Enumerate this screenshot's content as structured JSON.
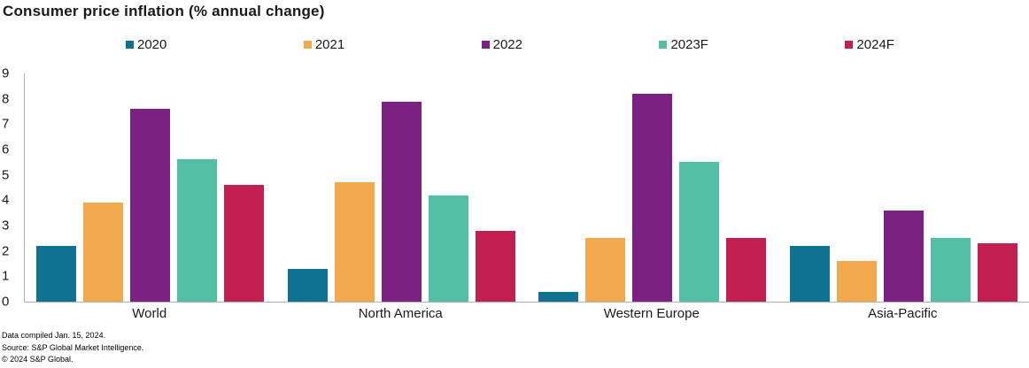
{
  "chart_data": {
    "type": "bar",
    "title": "Consumer price inflation (% annual change)",
    "categories": [
      "World",
      "North America",
      "Western Europe",
      "Asia-Pacific"
    ],
    "series": [
      {
        "name": "2020",
        "color": "#0f7291",
        "values": [
          2.2,
          1.3,
          0.4,
          2.2
        ]
      },
      {
        "name": "2021",
        "color": "#f2a84d",
        "values": [
          3.9,
          4.7,
          2.5,
          1.6
        ]
      },
      {
        "name": "2022",
        "color": "#7b2182",
        "values": [
          7.6,
          7.9,
          8.2,
          3.6
        ]
      },
      {
        "name": "2023F",
        "color": "#52bfa5",
        "values": [
          5.6,
          4.2,
          5.5,
          2.5
        ]
      },
      {
        "name": "2024F",
        "color": "#c22050",
        "values": [
          4.6,
          2.8,
          2.5,
          2.3
        ]
      }
    ],
    "xlabel": "",
    "ylabel": "",
    "ylim": [
      0,
      9
    ],
    "yticks": [
      0,
      1,
      2,
      3,
      4,
      5,
      6,
      7,
      8,
      9
    ],
    "grid": false,
    "legend_position": "top",
    "axis_color": "#b0b0b0"
  },
  "footer": {
    "data_compiled": "Data compiled Jan. 15, 2024.",
    "source": "Source: S&P Global Market Intelligence.",
    "copyright": "© 2024 S&P Global."
  }
}
